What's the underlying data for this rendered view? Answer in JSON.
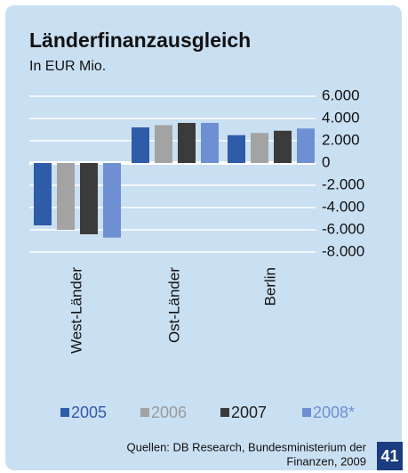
{
  "chart_data": {
    "type": "bar",
    "title": "Länderfinanzausgleich",
    "subtitle": "In EUR Mio.",
    "categories": [
      "West-Länder",
      "Ost-Länder",
      "Berlin"
    ],
    "series": [
      {
        "name": "2005",
        "color": "#2f5ca8",
        "values": [
          -5600,
          3200,
          2500
        ]
      },
      {
        "name": "2006",
        "color": "#a3a3a3",
        "values": [
          -6000,
          3400,
          2700
        ]
      },
      {
        "name": "2007",
        "color": "#3b3b3b",
        "values": [
          -6400,
          3600,
          2900
        ]
      },
      {
        "name": "2008*",
        "color": "#6e90d2",
        "values": [
          -6700,
          3600,
          3100
        ]
      }
    ],
    "ylim": [
      -8000,
      6000
    ],
    "yticks": [
      {
        "value": 6000,
        "label": "6.000"
      },
      {
        "value": 4000,
        "label": "4.000"
      },
      {
        "value": 2000,
        "label": "2.000"
      },
      0,
      {
        "value": -2000,
        "label": "-2.000"
      },
      {
        "value": -4000,
        "label": "-4.000"
      },
      {
        "value": -6000,
        "label": "-6.000"
      },
      {
        "value": -8000,
        "label": "-8.000"
      }
    ],
    "grid": true,
    "legend": "bottom",
    "source": [
      "Quellen: DB Research, Bundesministerium der",
      "Finanzen, 2009"
    ],
    "page_number": "41"
  }
}
